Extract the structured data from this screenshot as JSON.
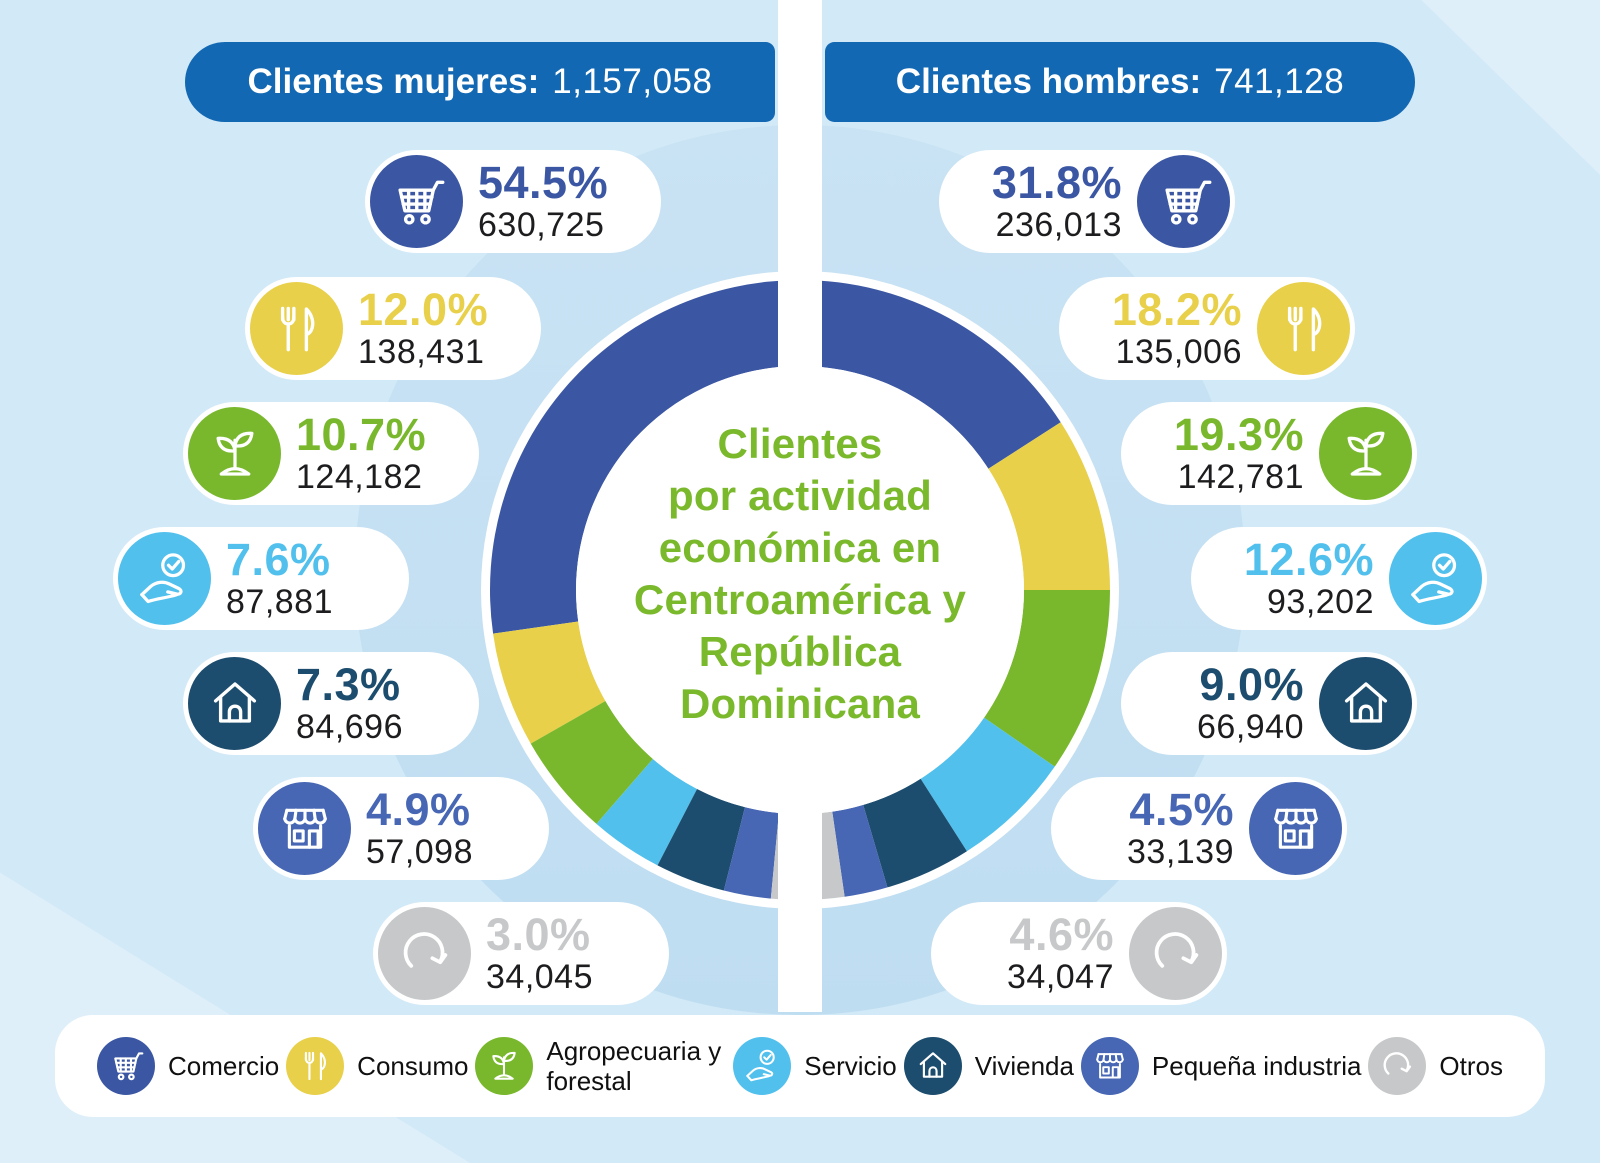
{
  "page": {
    "background": "#d2e9f7",
    "divider_color": "#ffffff"
  },
  "headers": {
    "bar_color": "#1268b2",
    "women_label": "Clientes mujeres:",
    "women_value": "1,157,058",
    "men_label": "Clientes hombres:",
    "men_value": "741,128"
  },
  "center_title": "Clientes\npor actividad\neconómica en\nCentroamérica y\nRepública\nDominicana",
  "center_title_color": "#7ab82c",
  "categories": [
    {
      "label": "Comercio",
      "color": "#3b57a3",
      "icon": "cart-icon"
    },
    {
      "label": "Consumo",
      "color": "#e8d04a",
      "icon": "utensils-icon"
    },
    {
      "label": "Agropecuaria y forestal",
      "color": "#79b82d",
      "icon": "plant-icon"
    },
    {
      "label": "Servicio",
      "color": "#51c0ed",
      "icon": "hand-check-icon"
    },
    {
      "label": "Vivienda",
      "color": "#1d4d6e",
      "icon": "house-icon"
    },
    {
      "label": "Pequeña industria",
      "color": "#4767b4",
      "icon": "store-icon"
    },
    {
      "label": "Otros",
      "color": "#c7c8c9",
      "icon": "refresh-icon"
    }
  ],
  "women": [
    {
      "pct": "54.5%",
      "count": "630,725"
    },
    {
      "pct": "12.0%",
      "count": "138,431"
    },
    {
      "pct": "10.7%",
      "count": "124,182"
    },
    {
      "pct": "7.6%",
      "count": "87,881"
    },
    {
      "pct": "7.3%",
      "count": "84,696"
    },
    {
      "pct": "4.9%",
      "count": "57,098"
    },
    {
      "pct": "3.0%",
      "count": "34,045"
    }
  ],
  "men": [
    {
      "pct": "31.8%",
      "count": "236,013"
    },
    {
      "pct": "18.2%",
      "count": "135,006"
    },
    {
      "pct": "19.3%",
      "count": "142,781"
    },
    {
      "pct": "12.6%",
      "count": "93,202"
    },
    {
      "pct": "9.0%",
      "count": "66,940"
    },
    {
      "pct": "4.5%",
      "count": "33,139"
    },
    {
      "pct": "4.6%",
      "count": "34,047"
    }
  ],
  "chart_data": {
    "type": "pie",
    "subtype": "split-donut-two-halves",
    "title": "Clientes por actividad económica en Centroamérica y República Dominicana",
    "categories": [
      "Comercio",
      "Consumo",
      "Agropecuaria y forestal",
      "Servicio",
      "Vivienda",
      "Pequeña industria",
      "Otros"
    ],
    "colors": [
      "#3b57a3",
      "#e8d04a",
      "#79b82d",
      "#51c0ed",
      "#1d4d6e",
      "#4767b4",
      "#c7c8c9"
    ],
    "series": [
      {
        "name": "Clientes mujeres",
        "side": "left",
        "total": 1157058,
        "pct": [
          54.5,
          12.0,
          10.7,
          7.6,
          7.3,
          4.9,
          3.0
        ],
        "counts": [
          630725,
          138431,
          124182,
          87881,
          84696,
          57098,
          34045
        ]
      },
      {
        "name": "Clientes hombres",
        "side": "right",
        "total": 741128,
        "pct": [
          31.8,
          18.2,
          19.3,
          12.6,
          9.0,
          4.5,
          4.6
        ],
        "counts": [
          236013,
          135006,
          142781,
          93202,
          66940,
          33139,
          34047
        ]
      }
    ],
    "legend_position": "bottom"
  }
}
